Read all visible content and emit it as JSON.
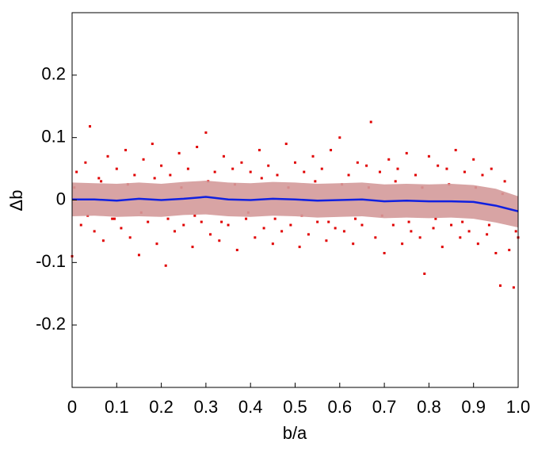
{
  "chart_data": {
    "type": "scatter",
    "x_label": "b/a",
    "y_label": "Δb",
    "xlim": [
      0,
      1
    ],
    "ylim": [
      -0.3,
      0.3
    ],
    "xticks": [
      0,
      0.1,
      0.2,
      0.3,
      0.4,
      0.5,
      0.6,
      0.7,
      0.8,
      0.9,
      {
        "value": 1,
        "label": "1.0"
      }
    ],
    "yticks": [
      -0.2,
      -0.1,
      0,
      0.1,
      0.2
    ],
    "band": {
      "color": "#d49a9a",
      "x": [
        0,
        0.05,
        0.1,
        0.15,
        0.2,
        0.25,
        0.3,
        0.35,
        0.4,
        0.45,
        0.5,
        0.55,
        0.6,
        0.65,
        0.7,
        0.75,
        0.8,
        0.85,
        0.9,
        0.95,
        1
      ],
      "upper": [
        0.028,
        0.027,
        0.026,
        0.028,
        0.026,
        0.029,
        0.031,
        0.028,
        0.027,
        0.029,
        0.028,
        0.026,
        0.027,
        0.028,
        0.025,
        0.026,
        0.025,
        0.026,
        0.024,
        0.018,
        0.006
      ],
      "lower": [
        -0.026,
        -0.025,
        -0.027,
        -0.026,
        -0.027,
        -0.024,
        -0.023,
        -0.026,
        -0.027,
        -0.025,
        -0.026,
        -0.028,
        -0.027,
        -0.026,
        -0.029,
        -0.028,
        -0.029,
        -0.028,
        -0.03,
        -0.036,
        -0.044
      ]
    },
    "mean_line": {
      "color": "#1020e0",
      "x": [
        0,
        0.05,
        0.1,
        0.15,
        0.2,
        0.25,
        0.3,
        0.35,
        0.4,
        0.45,
        0.5,
        0.55,
        0.6,
        0.65,
        0.7,
        0.75,
        0.8,
        0.85,
        0.9,
        0.95,
        1
      ],
      "values": [
        0.001,
        0.001,
        -0.001,
        0.002,
        0.0,
        0.002,
        0.005,
        0.001,
        0.0,
        0.002,
        0.001,
        -0.001,
        0.0,
        0.001,
        -0.002,
        -0.001,
        -0.002,
        -0.002,
        -0.003,
        -0.009,
        -0.018
      ]
    },
    "points": {
      "color": "#e00000",
      "x": [
        0.0,
        0.01,
        0.02,
        0.03,
        0.04,
        0.05,
        0.06,
        0.07,
        0.08,
        0.09,
        0.1,
        0.11,
        0.12,
        0.13,
        0.14,
        0.15,
        0.16,
        0.17,
        0.18,
        0.19,
        0.2,
        0.21,
        0.22,
        0.23,
        0.24,
        0.25,
        0.26,
        0.27,
        0.28,
        0.29,
        0.3,
        0.31,
        0.32,
        0.33,
        0.34,
        0.35,
        0.36,
        0.37,
        0.38,
        0.39,
        0.4,
        0.41,
        0.42,
        0.43,
        0.44,
        0.45,
        0.46,
        0.47,
        0.48,
        0.49,
        0.5,
        0.51,
        0.52,
        0.53,
        0.54,
        0.55,
        0.56,
        0.57,
        0.58,
        0.59,
        0.6,
        0.61,
        0.62,
        0.63,
        0.64,
        0.65,
        0.66,
        0.67,
        0.68,
        0.69,
        0.7,
        0.71,
        0.72,
        0.73,
        0.74,
        0.75,
        0.76,
        0.77,
        0.78,
        0.79,
        0.8,
        0.81,
        0.82,
        0.83,
        0.84,
        0.85,
        0.86,
        0.87,
        0.88,
        0.89,
        0.9,
        0.91,
        0.92,
        0.93,
        0.94,
        0.95,
        0.96,
        0.97,
        0.98,
        0.99,
        1.0,
        0.005,
        0.035,
        0.065,
        0.095,
        0.125,
        0.155,
        0.185,
        0.215,
        0.245,
        0.275,
        0.305,
        0.335,
        0.365,
        0.395,
        0.425,
        0.455,
        0.485,
        0.515,
        0.545,
        0.575,
        0.605,
        0.635,
        0.665,
        0.695,
        0.725,
        0.755,
        0.785,
        0.815,
        0.845,
        0.875,
        0.905,
        0.935,
        0.965,
        0.995
      ],
      "y": [
        -0.09,
        0.045,
        -0.04,
        0.06,
        0.118,
        -0.05,
        0.035,
        -0.065,
        0.07,
        -0.03,
        0.05,
        -0.045,
        0.08,
        -0.06,
        0.04,
        -0.088,
        0.065,
        -0.035,
        0.09,
        -0.07,
        0.055,
        -0.105,
        0.04,
        -0.05,
        0.075,
        -0.04,
        0.05,
        -0.075,
        0.085,
        -0.035,
        0.108,
        -0.055,
        0.045,
        -0.065,
        0.07,
        -0.04,
        0.05,
        -0.08,
        0.06,
        -0.03,
        0.045,
        -0.06,
        0.08,
        -0.045,
        0.055,
        -0.07,
        0.04,
        -0.05,
        0.09,
        -0.04,
        0.06,
        -0.075,
        0.045,
        -0.055,
        0.07,
        -0.035,
        0.05,
        -0.065,
        0.08,
        -0.045,
        0.1,
        -0.05,
        0.04,
        -0.07,
        0.06,
        -0.04,
        0.055,
        0.125,
        -0.06,
        0.045,
        -0.085,
        0.065,
        -0.04,
        0.05,
        -0.07,
        0.075,
        -0.05,
        0.04,
        -0.06,
        -0.118,
        0.07,
        -0.045,
        0.055,
        -0.075,
        0.05,
        -0.04,
        0.08,
        -0.06,
        0.045,
        -0.05,
        0.065,
        -0.07,
        0.04,
        -0.055,
        0.05,
        -0.085,
        -0.137,
        0.03,
        -0.08,
        -0.14,
        -0.06,
        0.02,
        -0.025,
        0.03,
        -0.03,
        0.025,
        -0.02,
        0.035,
        -0.03,
        0.02,
        -0.025,
        0.03,
        -0.035,
        0.025,
        -0.02,
        0.035,
        -0.03,
        0.02,
        -0.025,
        0.03,
        -0.035,
        0.025,
        -0.03,
        0.02,
        -0.025,
        0.03,
        -0.035,
        0.02,
        -0.03,
        0.025,
        -0.035,
        0.02,
        -0.04,
        0.01,
        -0.05
      ]
    }
  }
}
